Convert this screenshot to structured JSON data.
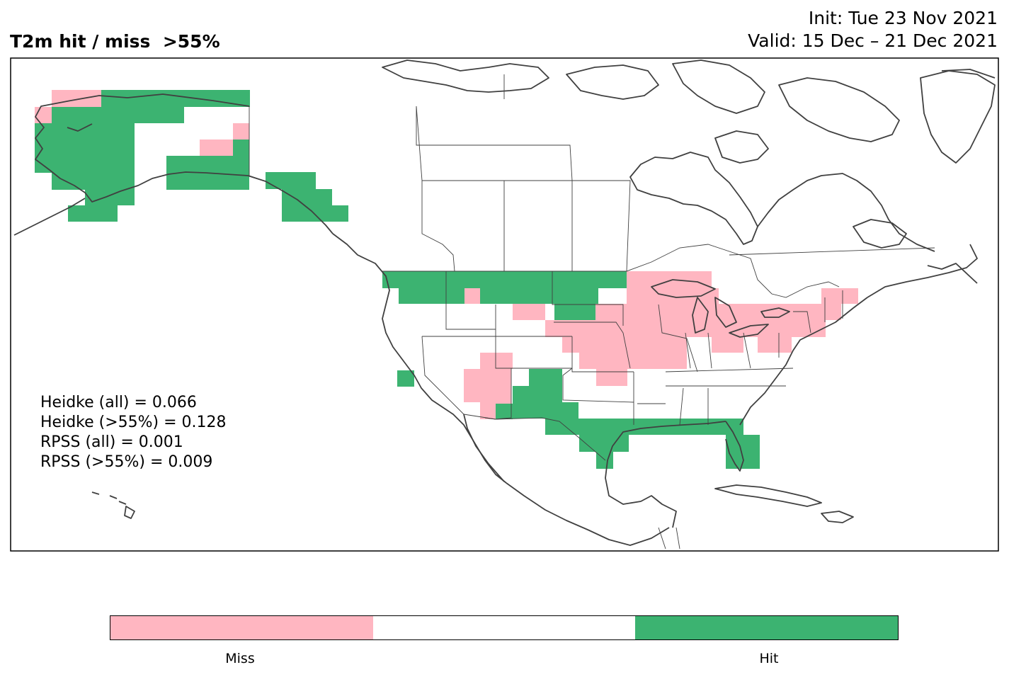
{
  "title": "T2m hit / miss  >55%",
  "init_label": "Init: Tue 23 Nov 2021",
  "valid_label": "Valid: 15 Dec – 21 Dec 2021",
  "stats": {
    "heidke_all": "Heidke (all) = 0.066",
    "heidke_55": "Heidke (>55%) = 0.128",
    "rpss_all": "RPSS (all) = 0.001",
    "rpss_55": "RPSS (>55%) = 0.009"
  },
  "colors": {
    "miss": "#ffb6c1",
    "neutral": "#ffffff",
    "hit": "#3cb371",
    "coast": "#404040",
    "border": "#404040"
  },
  "colorbar": {
    "miss_label": "Miss",
    "hit_label": "Hit"
  }
}
